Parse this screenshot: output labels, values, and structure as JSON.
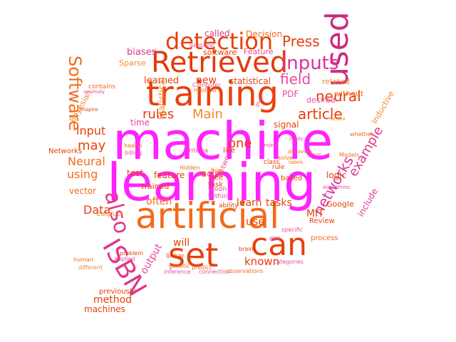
{
  "cloud": {
    "words": [
      {
        "text": "machine",
        "color": "#ff22ff"
      },
      {
        "text": "learning",
        "color": "#ff22ff"
      },
      {
        "text": "training",
        "color": "#e8400a"
      },
      {
        "text": "artificial",
        "color": "#f26a1b"
      },
      {
        "text": "Retrieved",
        "color": "#e33a0c"
      },
      {
        "text": "detection",
        "color": "#e8400a"
      },
      {
        "text": "set",
        "color": "#e8400a"
      },
      {
        "text": "can",
        "color": "#e8400a"
      },
      {
        "text": "used",
        "color": "#cc2a80"
      },
      {
        "text": "ISBN",
        "color": "#e0388a"
      },
      {
        "text": "also",
        "color": "#e0388a"
      },
      {
        "text": "Software",
        "color": "#f26a1b"
      },
      {
        "text": "inputs",
        "color": "#d8329a"
      },
      {
        "text": "neural",
        "color": "#e8400a"
      },
      {
        "text": "article",
        "color": "#e8400a"
      },
      {
        "text": "networks",
        "color": "#d8329a"
      },
      {
        "text": "Press",
        "color": "#e8400a"
      },
      {
        "text": "field",
        "color": "#e84aa0"
      },
      {
        "text": "Main",
        "color": "#f28a2a"
      },
      {
        "text": "rules",
        "color": "#e8400a"
      },
      {
        "text": "one",
        "color": "#e8400a"
      },
      {
        "text": "may",
        "color": "#e8400a"
      },
      {
        "text": "input",
        "color": "#e8400a"
      },
      {
        "text": "Neural",
        "color": "#f26a1b"
      },
      {
        "text": "using",
        "color": "#f26a1b"
      },
      {
        "text": "Data",
        "color": "#e8400a"
      },
      {
        "text": "example",
        "color": "#e0388a"
      },
      {
        "text": "known",
        "color": "#e8400a"
      },
      {
        "text": "use",
        "color": "#e8400a"
      },
      {
        "text": "learn",
        "color": "#e8400a"
      },
      {
        "text": "tasks",
        "color": "#e8400a"
      },
      {
        "text": "often",
        "color": "#f26a1b"
      },
      {
        "text": "will",
        "color": "#e8400a"
      },
      {
        "text": "output",
        "color": "#e84aa0"
      },
      {
        "text": "method",
        "color": "#e8400a"
      },
      {
        "text": "machines",
        "color": "#e8400a"
      },
      {
        "text": "MIT",
        "color": "#e8400a"
      },
      {
        "text": "logic",
        "color": "#e8400a"
      },
      {
        "text": "include",
        "color": "#e0388a"
      },
      {
        "text": "Inductive",
        "color": "#f28a2a"
      },
      {
        "text": "vector",
        "color": "#f26a1b"
      },
      {
        "text": "new",
        "color": "#e8400a"
      },
      {
        "text": "learned",
        "color": "#e8400a"
      },
      {
        "text": "statistical",
        "color": "#e8400a"
      },
      {
        "text": "biases",
        "color": "#e0388a"
      },
      {
        "text": "called",
        "color": "#e0388a"
      },
      {
        "text": "Decision",
        "color": "#f26a1b"
      },
      {
        "text": "Feature",
        "color": "#e84aa0"
      },
      {
        "text": "software",
        "color": "#e8400a"
      },
      {
        "text": "related",
        "color": "#f28a2a"
      },
      {
        "text": "without",
        "color": "#f26a1b"
      },
      {
        "text": "desired",
        "color": "#e84aa0"
      },
      {
        "text": "Bayesian",
        "color": "#f28a2a"
      },
      {
        "text": "Sparse",
        "color": "#f28a2a"
      },
      {
        "text": "time",
        "color": "#e84aa0"
      },
      {
        "text": "Networks",
        "color": "#e8400a"
      },
      {
        "text": "feature",
        "color": "#e8400a"
      },
      {
        "text": "test",
        "color": "#e8400a"
      },
      {
        "text": "trained",
        "color": "#e8400a"
      },
      {
        "text": "signal",
        "color": "#e8400a"
      },
      {
        "text": "racist",
        "color": "#f26a1b"
      },
      {
        "text": "PDF",
        "color": "#e84aa0"
      },
      {
        "text": "Statistical",
        "color": "#f28a2a"
      },
      {
        "text": "Google",
        "color": "#e8400a"
      },
      {
        "text": "Review",
        "color": "#e8400a"
      },
      {
        "text": "process",
        "color": "#f26a1b"
      },
      {
        "text": "outputs",
        "color": "#f28a2a"
      },
      {
        "text": "previously",
        "color": "#e8400a"
      },
      {
        "text": "contains",
        "color": "#f26a1b"
      },
      {
        "text": "human",
        "color": "#f26a1b"
      },
      {
        "text": "different",
        "color": "#f28a2a"
      },
      {
        "text": "linear",
        "color": "#e8400a"
      },
      {
        "text": "tree",
        "color": "#e8400a"
      },
      {
        "text": "task",
        "color": "#e8400a"
      },
      {
        "text": "vision",
        "color": "#e84aa0"
      },
      {
        "text": "ability",
        "color": "#e8400a"
      },
      {
        "text": "based",
        "color": "#e8400a"
      },
      {
        "text": "within",
        "color": "#e84aa0"
      },
      {
        "text": "like",
        "color": "#e8400a"
      },
      {
        "text": "two",
        "color": "#e84aa0"
      },
      {
        "text": "bias",
        "color": "#f26a1b"
      },
      {
        "text": "rule",
        "color": "#e8400a"
      },
      {
        "text": "class",
        "color": "#e8400a"
      },
      {
        "text": "criteria",
        "color": "#e84aa0"
      },
      {
        "text": "genetic",
        "color": "#f26a1b"
      },
      {
        "text": "inference",
        "color": "#e84aa0"
      },
      {
        "text": "applied",
        "color": "#e84aa0"
      },
      {
        "text": "problem",
        "color": "#e8400a"
      },
      {
        "text": "connection",
        "color": "#e84aa0"
      },
      {
        "text": "observations",
        "color": "#f26a1b"
      },
      {
        "text": "categories",
        "color": "#e84aa0"
      },
      {
        "text": "predict",
        "color": "#f26a1b"
      },
      {
        "text": "brain",
        "color": "#e8400a"
      },
      {
        "text": "Models",
        "color": "#f26a1b"
      },
      {
        "text": "Algorithms",
        "color": "#e84aa0"
      },
      {
        "text": "Netflix",
        "color": "#f28a2a"
      },
      {
        "text": "health",
        "color": "#f26a1b"
      },
      {
        "text": "billing",
        "color": "#e84aa0"
      },
      {
        "text": "whether",
        "color": "#f26a1b"
      },
      {
        "text": "solve",
        "color": "#f26a1b"
      },
      {
        "text": "study",
        "color": "#e84aa0"
      },
      {
        "text": "IBM",
        "color": "#e84aa0"
      },
      {
        "text": "specific",
        "color": "#e84aa0"
      },
      {
        "text": "goal",
        "color": "#e84aa0"
      },
      {
        "text": "Shapiro",
        "color": "#e8400a"
      },
      {
        "text": "anomaly",
        "color": "#e84aa0"
      },
      {
        "text": "medical",
        "color": "#f26a1b"
      },
      {
        "text": "Computer",
        "color": "#e84aa0"
      },
      {
        "text": "labels",
        "color": "#f26a1b"
      },
      {
        "text": "focus",
        "color": "#e84aa0"
      },
      {
        "text": "discovery",
        "color": "#f26a1b"
      },
      {
        "text": "project",
        "color": "#e84aa0"
      },
      {
        "text": "additional",
        "color": "#e84aa0"
      },
      {
        "text": "Hidden",
        "color": "#f26a1b"
      }
    ]
  }
}
